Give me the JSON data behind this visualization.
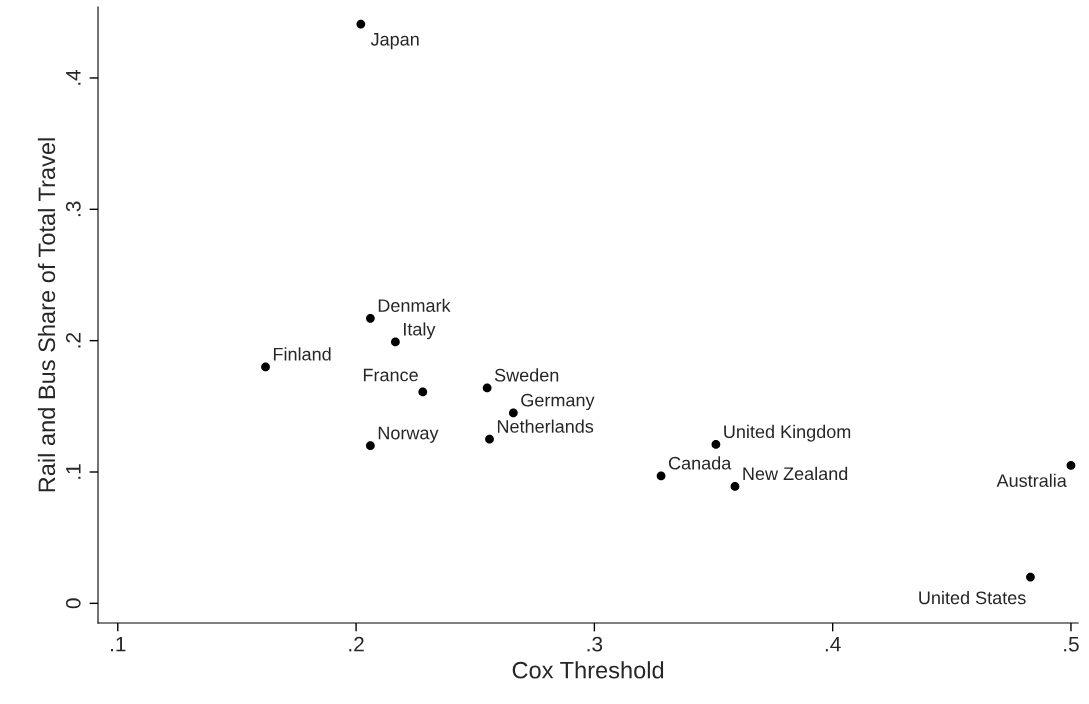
{
  "chart_data": {
    "type": "scatter",
    "xlabel": "Cox Threshold",
    "ylabel": "Rail and Bus Share of Total Travel",
    "x": [
      0.202,
      0.206,
      0.2165,
      0.162,
      0.228,
      0.255,
      0.266,
      0.206,
      0.256,
      0.351,
      0.328,
      0.359,
      0.5,
      0.483
    ],
    "series": [
      {
        "color": "#000000",
        "values": [
          0.441,
          0.217,
          0.199,
          0.18,
          0.161,
          0.164,
          0.145,
          0.12,
          0.125,
          0.121,
          0.097,
          0.089,
          0.105,
          0.02
        ]
      }
    ],
    "marker": "circle",
    "grid": false,
    "legend": false,
    "xlim": [
      0.0917,
      0.503
    ],
    "ylim": [
      -0.015,
      0.454
    ],
    "xticks": [
      {
        "value": 0.1,
        "label": ".1"
      },
      {
        "value": 0.2,
        "label": ".2"
      },
      {
        "value": 0.3,
        "label": ".3"
      },
      {
        "value": 0.4,
        "label": ".4"
      },
      {
        "value": 0.5,
        "label": ".5"
      }
    ],
    "yticks": [
      0,
      {
        "value": 0.1,
        "label": ".1"
      },
      {
        "value": 0.2,
        "label": ".2"
      },
      {
        "value": 0.3,
        "label": ".3"
      },
      {
        "value": 0.4,
        "label": ".4"
      }
    ],
    "annotations": [
      {
        "text": "Japan",
        "x": 0.202,
        "y": 0.441
      },
      {
        "text": "Denmark",
        "x": 0.206,
        "y": 0.217
      },
      {
        "text": "Italy",
        "x": 0.2165,
        "y": 0.199
      },
      {
        "text": "Finland",
        "x": 0.162,
        "y": 0.18
      },
      {
        "text": "France",
        "x": 0.228,
        "y": 0.161
      },
      {
        "text": "Sweden",
        "x": 0.255,
        "y": 0.164
      },
      {
        "text": "Germany",
        "x": 0.266,
        "y": 0.145
      },
      {
        "text": "Norway",
        "x": 0.206,
        "y": 0.12
      },
      {
        "text": "Netherlands",
        "x": 0.256,
        "y": 0.125
      },
      {
        "text": "United Kingdom",
        "x": 0.351,
        "y": 0.121
      },
      {
        "text": "Canada",
        "x": 0.328,
        "y": 0.097
      },
      {
        "text": "New Zealand",
        "x": 0.359,
        "y": 0.089
      },
      {
        "text": "Australia",
        "x": 0.5,
        "y": 0.105
      },
      {
        "text": "United States",
        "x": 0.483,
        "y": 0.02
      }
    ]
  }
}
